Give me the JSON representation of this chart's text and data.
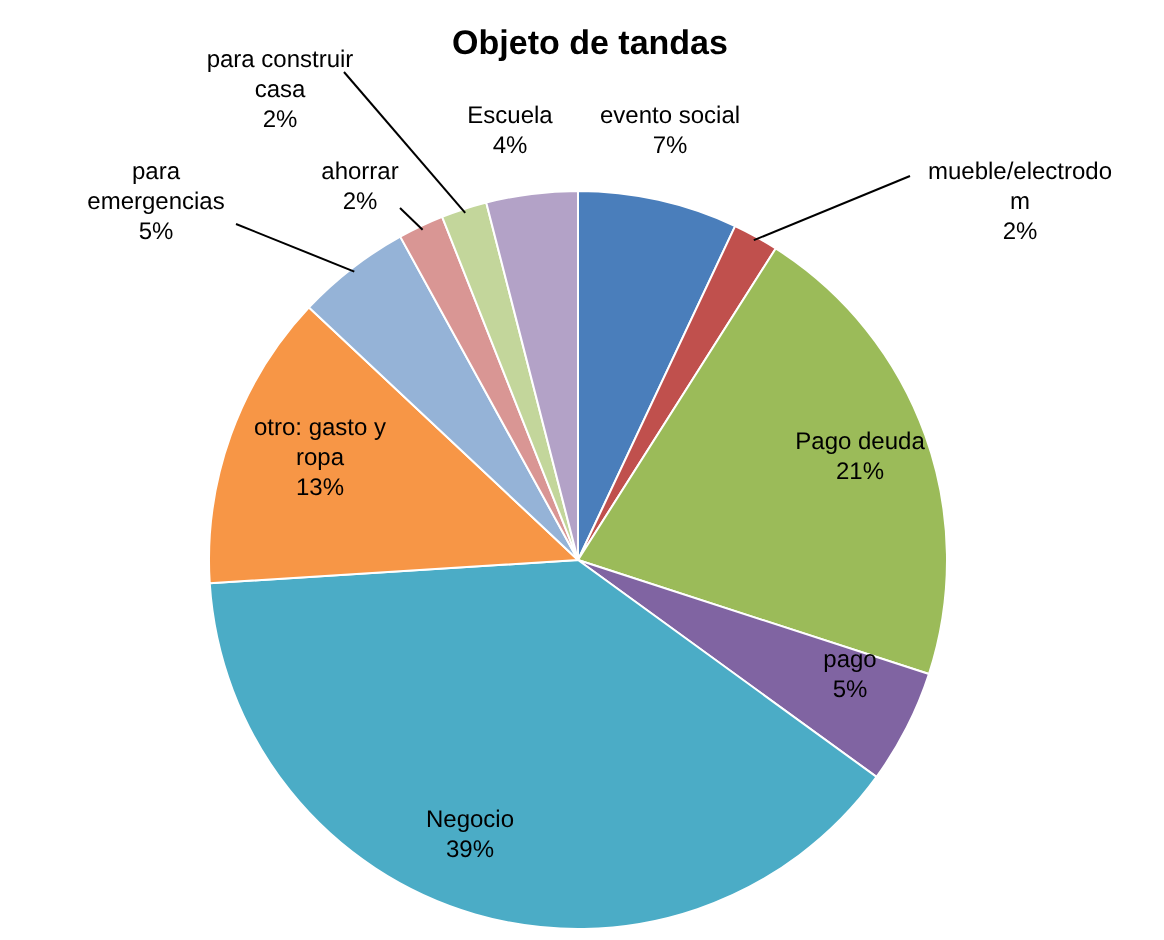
{
  "chart_data": {
    "type": "pie",
    "title": "Objeto de tandas",
    "categories": [
      "evento social",
      "mueble/electrodom",
      "Pago deuda",
      "pago",
      "Negocio",
      "otro: gasto y ropa",
      "para emergencias",
      "ahorrar",
      "para construir casa",
      "Escuela"
    ],
    "values": [
      7,
      2,
      21,
      5,
      39,
      13,
      5,
      2,
      2,
      4
    ],
    "value_labels": [
      "7%",
      "2%",
      "21%",
      "5%",
      "39%",
      "13%",
      "5%",
      "2%",
      "2%",
      "4%"
    ],
    "colors": [
      "#4a7ebb",
      "#c0504d",
      "#9bbb59",
      "#8064a2",
      "#4bacc6",
      "#f79646",
      "#95b3d7",
      "#d99694",
      "#c3d69b",
      "#b3a2c7"
    ],
    "legend": false
  }
}
